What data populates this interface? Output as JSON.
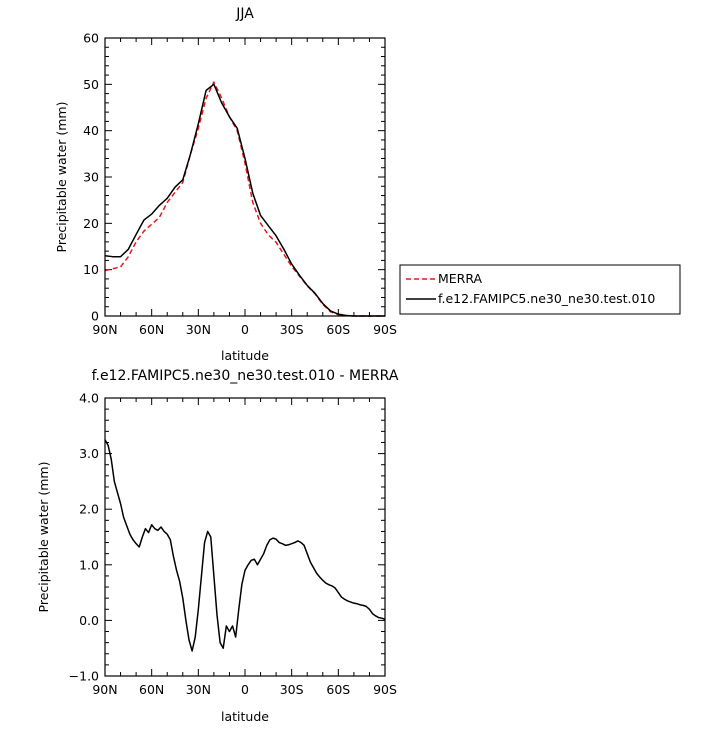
{
  "chart_data": [
    {
      "type": "line",
      "title": "JJA",
      "xlabel": "latitude",
      "ylabel": "Precipitable water (mm)",
      "xlim": [
        90,
        -90
      ],
      "ylim": [
        0,
        60
      ],
      "xticks": [
        90,
        60,
        30,
        0,
        -30,
        -60,
        -90
      ],
      "xtick_labels": [
        "90N",
        "60N",
        "30N",
        "0",
        "30S",
        "60S",
        "90S"
      ],
      "yticks": [
        0,
        10,
        20,
        30,
        40,
        50,
        60
      ],
      "ytick_labels": [
        "0",
        "10",
        "20",
        "30",
        "40",
        "50",
        "60"
      ],
      "legend_position": "right",
      "x": [
        90,
        85,
        80,
        75,
        70,
        65,
        60,
        55,
        50,
        45,
        40,
        35,
        30,
        25,
        20,
        15,
        10,
        5,
        0,
        -5,
        -10,
        -15,
        -20,
        -25,
        -30,
        -35,
        -40,
        -45,
        -50,
        -55,
        -60,
        -65,
        -70,
        -75,
        -80,
        -85,
        -90
      ],
      "series": [
        {
          "name": "MERRA",
          "color": "#e41a1c",
          "dash": "dashed",
          "values": [
            9.8,
            10.2,
            10.6,
            12.8,
            16.0,
            18.3,
            19.8,
            21.3,
            24.5,
            26.7,
            28.8,
            35.0,
            40.5,
            47.0,
            50.5,
            47.0,
            43.0,
            40.0,
            33.0,
            24.5,
            20.0,
            17.5,
            15.9,
            13.3,
            10.7,
            8.6,
            6.5,
            4.8,
            2.5,
            0.9,
            0.3,
            0.1,
            0.0,
            0.0,
            0.0,
            0.0,
            0.0
          ]
        },
        {
          "name": "f.e12.FAMIPC5.ne30_ne30.test.010",
          "color": "#000000",
          "dash": "solid",
          "values": [
            13.0,
            12.8,
            12.8,
            14.4,
            17.6,
            20.7,
            22.0,
            23.9,
            25.4,
            27.8,
            29.4,
            35.0,
            41.5,
            48.7,
            50.0,
            46.0,
            43.0,
            40.5,
            34.0,
            26.5,
            21.7,
            19.5,
            17.3,
            14.4,
            11.2,
            8.8,
            6.6,
            4.9,
            2.7,
            1.1,
            0.4,
            0.1,
            0.0,
            0.0,
            0.0,
            0.0,
            0.0
          ]
        }
      ]
    },
    {
      "type": "line",
      "title": "f.e12.FAMIPC5.ne30_ne30.test.010 - MERRA",
      "xlabel": "latitude",
      "ylabel": "Precipitable water (mm)",
      "xlim": [
        90,
        -90
      ],
      "ylim": [
        -1.0,
        4.0
      ],
      "xticks": [
        90,
        60,
        30,
        0,
        -30,
        -60,
        -90
      ],
      "xtick_labels": [
        "90N",
        "60N",
        "30N",
        "0",
        "30S",
        "60S",
        "90S"
      ],
      "yticks": [
        -1.0,
        0.0,
        1.0,
        2.0,
        3.0,
        4.0
      ],
      "ytick_labels": [
        "−1.0",
        "0.0",
        "1.0",
        "2.0",
        "3.0",
        "4.0"
      ],
      "x": [
        90,
        88,
        86,
        84,
        82,
        80,
        78,
        76,
        74,
        72,
        70,
        68,
        66,
        64,
        62,
        60,
        58,
        56,
        54,
        52,
        50,
        48,
        46,
        44,
        42,
        40,
        38,
        36,
        34,
        32,
        30,
        28,
        26,
        24,
        22,
        20,
        18,
        16,
        14,
        12,
        10,
        8,
        6,
        4,
        2,
        0,
        -2,
        -4,
        -6,
        -8,
        -10,
        -12,
        -14,
        -16,
        -18,
        -20,
        -22,
        -24,
        -26,
        -28,
        -30,
        -32,
        -34,
        -36,
        -38,
        -40,
        -42,
        -44,
        -46,
        -48,
        -50,
        -52,
        -54,
        -56,
        -58,
        -60,
        -62,
        -64,
        -66,
        -68,
        -70,
        -72,
        -74,
        -76,
        -78,
        -80,
        -82,
        -84,
        -86,
        -88,
        -90
      ],
      "series": [
        {
          "name": "f.e12.FAMIPC5.ne30_ne30.test.010 - MERRA",
          "color": "#000000",
          "values": [
            3.25,
            3.15,
            2.9,
            2.5,
            2.3,
            2.1,
            1.85,
            1.7,
            1.55,
            1.45,
            1.38,
            1.32,
            1.5,
            1.65,
            1.58,
            1.72,
            1.65,
            1.62,
            1.68,
            1.6,
            1.55,
            1.45,
            1.15,
            0.9,
            0.7,
            0.4,
            0.0,
            -0.35,
            -0.55,
            -0.3,
            0.2,
            0.8,
            1.4,
            1.6,
            1.5,
            0.8,
            0.1,
            -0.4,
            -0.5,
            -0.1,
            -0.2,
            -0.1,
            -0.3,
            0.2,
            0.65,
            0.9,
            1.0,
            1.08,
            1.1,
            1.0,
            1.1,
            1.2,
            1.35,
            1.45,
            1.48,
            1.46,
            1.4,
            1.38,
            1.35,
            1.36,
            1.38,
            1.4,
            1.43,
            1.4,
            1.35,
            1.2,
            1.05,
            0.95,
            0.85,
            0.78,
            0.72,
            0.67,
            0.64,
            0.62,
            0.58,
            0.5,
            0.42,
            0.38,
            0.35,
            0.33,
            0.31,
            0.3,
            0.28,
            0.27,
            0.25,
            0.2,
            0.12,
            0.08,
            0.05,
            0.04,
            0.02
          ]
        }
      ]
    }
  ]
}
